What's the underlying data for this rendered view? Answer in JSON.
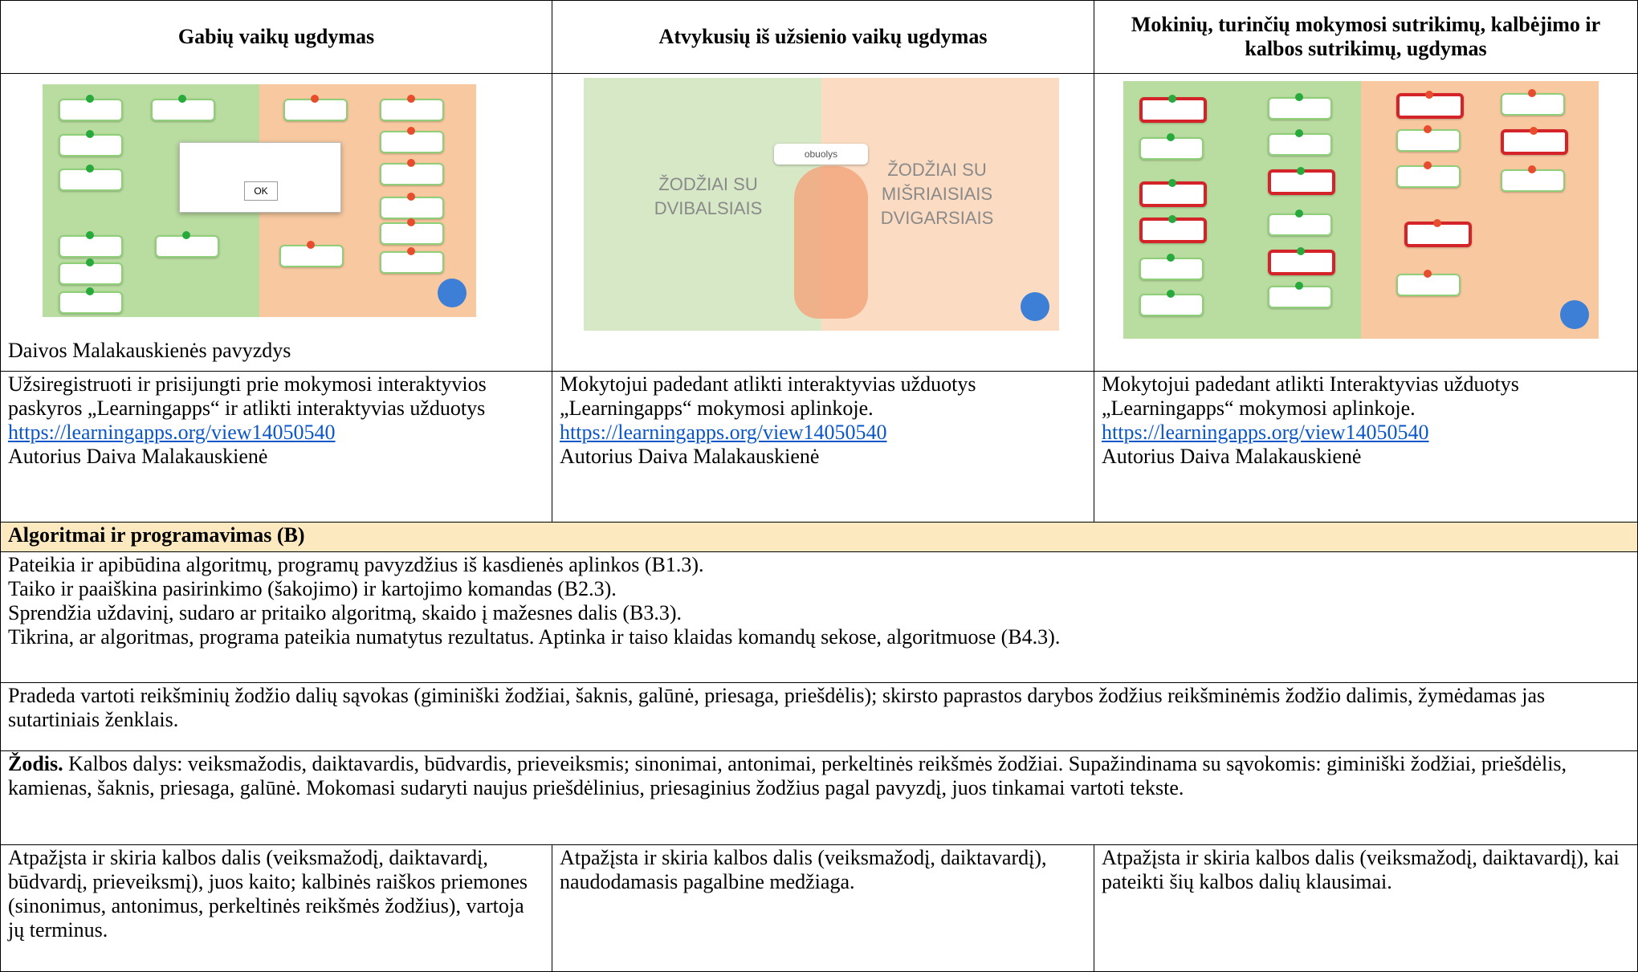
{
  "table": {
    "header": [
      "Gabių vaikų ugdymas",
      "Atvykusių iš užsienio vaikų ugdymas",
      "Mokinių, turinčių mokymosi sutrikimų, kalbėjimo ir kalbos sutrikimų, ugdymas"
    ],
    "screenshots": {
      "first": {
        "popup_button": "OK",
        "caption": "Daivos Malakauskienės pavyzdys"
      },
      "second": {
        "chip": "obuolys",
        "left_label": "ŽODŽIAI SU DVIBALSIAIS",
        "right_label": "ŽODŽIAI SU MIŠRIAISIAIS DVIGARSIAIS"
      }
    },
    "descriptions": [
      {
        "text": "Užsiregistruoti ir prisijungti prie mokymosi interaktyvios paskyros „Learningapps“ ir atlikti interaktyvias užduotys",
        "link": "https://learningapps.org/view14050540",
        "author": "Autorius Daiva Malakauskienė"
      },
      {
        "text": "Mokytojui padedant atlikti interaktyvias užduotys „Learningapps“ mokymosi aplinkoje.",
        "link": "https://learningapps.org/view14050540",
        "author": "Autorius Daiva Malakauskienė"
      },
      {
        "text": "Mokytojui padedant atlikti Interaktyvias užduotys „Learningapps“ mokymosi aplinkoje.",
        "link": "https://learningapps.org/view14050540",
        "author": "Autorius Daiva Malakauskienė"
      }
    ],
    "section": "Algoritmai ir programavimas (B)",
    "outcomes": [
      "Pateikia ir apibūdina algoritmų, programų pavyzdžius iš kasdienės aplinkos (B1.3).",
      "Taiko ir paaiškina pasirinkimo (šakojimo) ir kartojimo komandas (B2.3).",
      "Sprendžia uždavinį, sudaro ar pritaiko algoritmą, skaido į mažesnes dalis (B3.3).",
      "Tikrina, ar algoritmas, programa pateikia numatytus rezultatus. Aptinka ir taiso klaidas komandų sekose, algoritmuose (B4.3)."
    ],
    "word_parts": "Pradeda vartoti reikšminių žodžio dalių sąvokas (giminiški žodžiai, šaknis, galūnė, priesaga, priešdėlis); skirsto paprastos darybos žodžius reikšminėmis žodžio dalimis, žymėdamas jas sutartiniais ženklais.",
    "word": {
      "lead": "Žodis.",
      "text": "Kalbos dalys: veiksmažodis, daiktavardis, būdvardis, prieveiksmis; sinonimai, antonimai, perkeltinės reikšmės žodžiai. Supažindinama su sąvokomis: giminiški žodžiai, priešdėlis, kamienas, šaknis, priesaga, galūnė. Mokomasi sudaryti naujus priešdėlinius, priesaginius žodžius pagal pavyzdį, juos tinkamai vartoti tekste."
    },
    "levels": [
      "Atpažįsta ir skiria kalbos dalis (veiksmažodį, daiktavardį, būdvardį, prieveiksmį), juos kaito; kalbinės raiškos priemones (sinonimus, antonimus, perkeltinės reikšmės žodžius), vartoja jų terminus.",
      "Atpažįsta ir skiria kalbos dalis (veiksmažodį, daiktavardį), naudodamasis pagalbine medžiaga.",
      "Atpažįsta ir skiria kalbos dalis (veiksmažodį, daiktavardį), kai pateikti šių kalbos dalių klausimai."
    ]
  }
}
